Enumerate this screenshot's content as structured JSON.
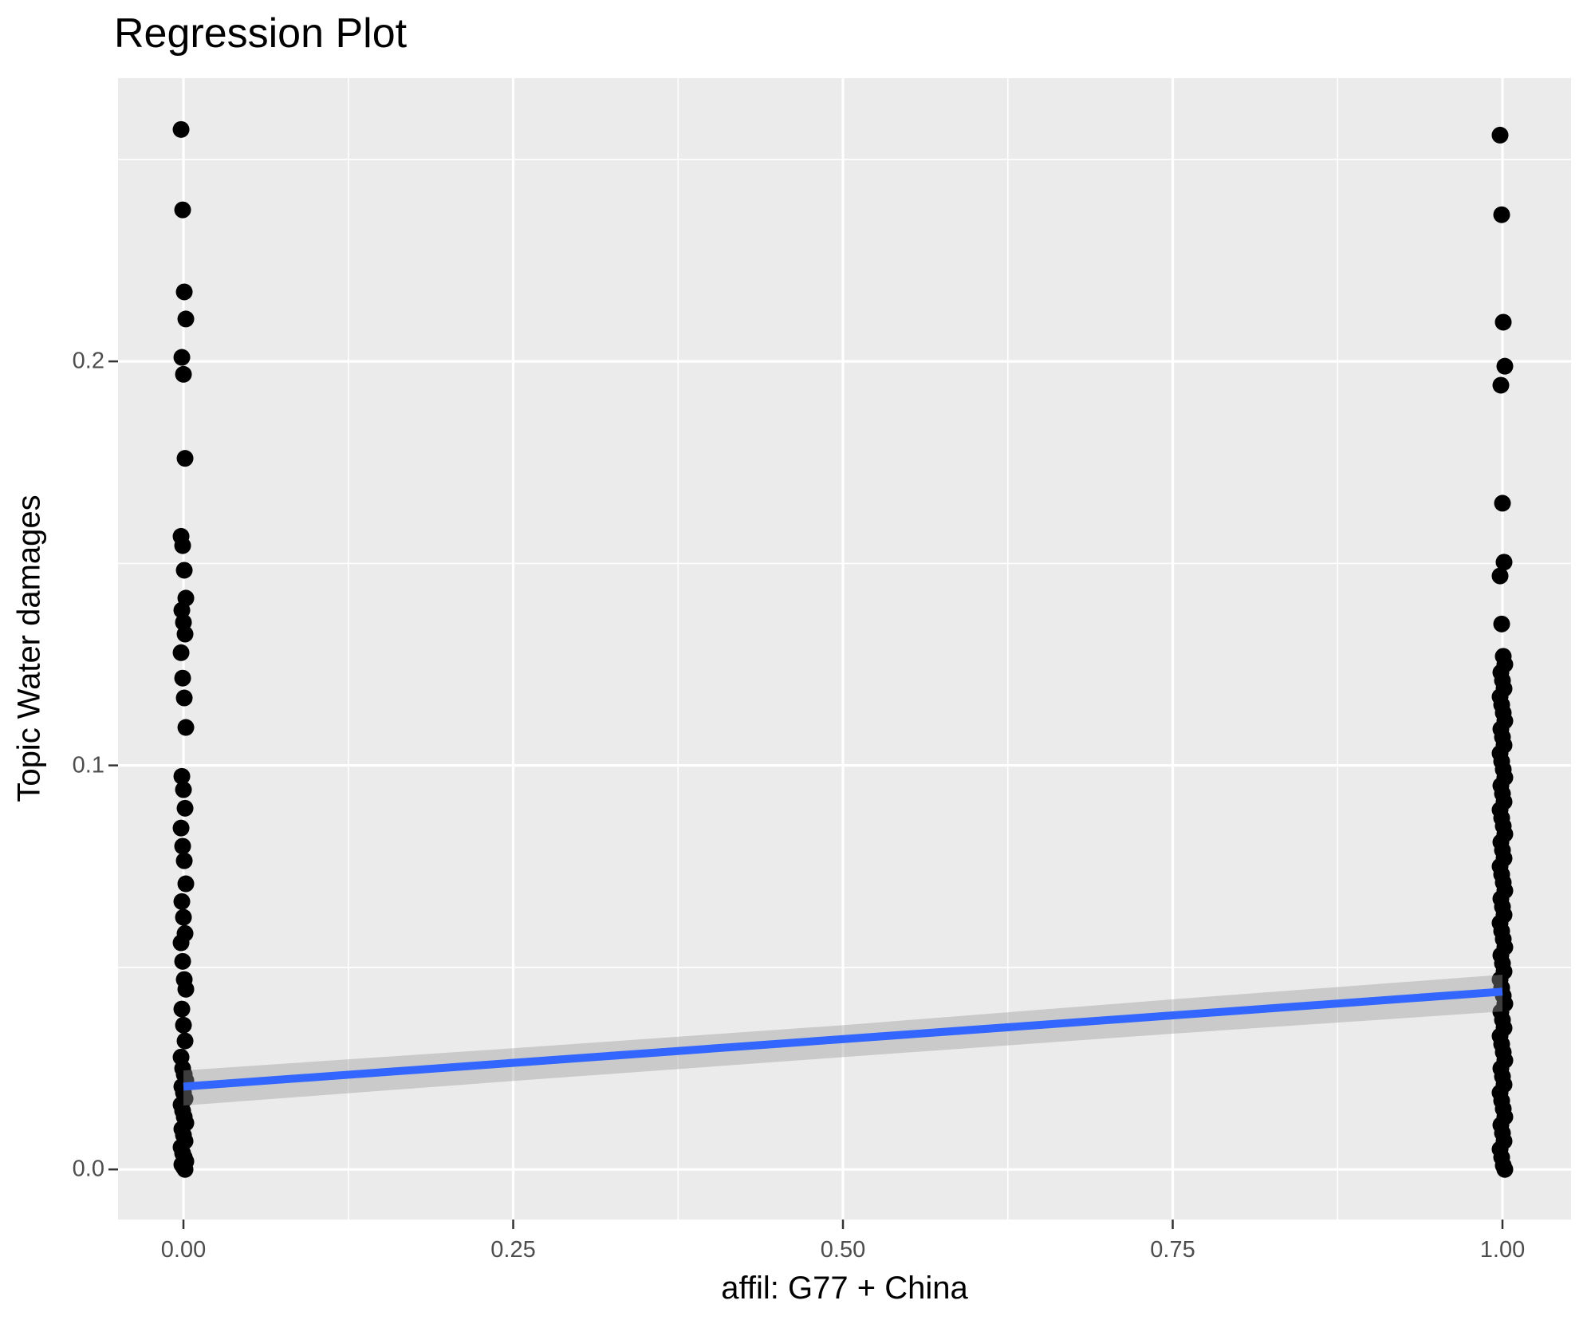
{
  "title": "Regression Plot",
  "colors": {
    "panel_background": "#EBEBEB",
    "gridline": "#FFFFFF",
    "tick_mark": "#333333",
    "tick_label": "#4D4D4D",
    "text": "#000000",
    "point": "#000000",
    "regression_line": "#3366FF",
    "confidence_band": "rgba(153,153,153,0.40)"
  },
  "chart_data": {
    "type": "scatter",
    "title": "Regression Plot",
    "xlabel": "affil: G77 + China",
    "ylabel": "Topic Water damages",
    "grid": true,
    "legend_position": "none",
    "xlim": [
      -0.0496,
      1.052
    ],
    "ylim": [
      -0.0124,
      0.2701
    ],
    "x_tick_labels": [
      "0.00",
      "0.25",
      "0.50",
      "0.75",
      "1.00"
    ],
    "x_tick_values": [
      0,
      0.25,
      0.5,
      0.75,
      1
    ],
    "y_tick_labels": [
      "0.0",
      "0.1",
      "0.2"
    ],
    "y_tick_values": [
      0,
      0.1,
      0.2
    ],
    "x_minor_values": [
      0.125,
      0.375,
      0.625,
      0.875
    ],
    "y_minor_values": [
      0.05,
      0.15,
      0.25
    ],
    "series": [
      {
        "name": "affil = 0",
        "x": 0,
        "y": [
          0.2574,
          0.2375,
          0.2172,
          0.2105,
          0.201,
          0.1968,
          0.176,
          0.1567,
          0.1544,
          0.1483,
          0.1414,
          0.1384,
          0.1354,
          0.1325,
          0.1279,
          0.1216,
          0.1167,
          0.1094,
          0.0973,
          0.094,
          0.0894,
          0.0845,
          0.08,
          0.0764,
          0.0707,
          0.0663,
          0.0624,
          0.0584,
          0.0561,
          0.0515,
          0.047,
          0.0446,
          0.0397,
          0.0357,
          0.0318,
          0.0278,
          0.025,
          0.0235,
          0.022,
          0.0205,
          0.019,
          0.0175,
          0.016,
          0.0145,
          0.013,
          0.0115,
          0.01,
          0.0085,
          0.007,
          0.0055,
          0.004,
          0.003,
          0.002,
          0.0012,
          0.0006,
          0.0
        ]
      },
      {
        "name": "affil = 1",
        "x": 1,
        "y": [
          0.256,
          0.2363,
          0.2097,
          0.1988,
          0.1941,
          0.1649,
          0.1503,
          0.1469,
          0.135,
          0.127,
          0.125,
          0.123,
          0.121,
          0.119,
          0.117,
          0.115,
          0.113,
          0.111,
          0.109,
          0.107,
          0.105,
          0.103,
          0.101,
          0.099,
          0.097,
          0.095,
          0.093,
          0.091,
          0.089,
          0.087,
          0.085,
          0.083,
          0.081,
          0.079,
          0.077,
          0.075,
          0.073,
          0.071,
          0.069,
          0.067,
          0.065,
          0.063,
          0.061,
          0.059,
          0.057,
          0.055,
          0.053,
          0.051,
          0.049,
          0.047,
          0.045,
          0.043,
          0.041,
          0.039,
          0.037,
          0.035,
          0.033,
          0.031,
          0.029,
          0.027,
          0.025,
          0.023,
          0.021,
          0.019,
          0.017,
          0.015,
          0.013,
          0.011,
          0.009,
          0.007,
          0.005,
          0.003,
          0.001,
          0.0
        ]
      }
    ],
    "regression_line": {
      "x": [
        0,
        1
      ],
      "y": [
        0.0205,
        0.044
      ]
    },
    "confidence_band": {
      "x": [
        0,
        0.25,
        0.5,
        0.75,
        1
      ],
      "ymax": [
        0.0245,
        0.03,
        0.0357,
        0.0421,
        0.0482
      ],
      "ymin": [
        0.0158,
        0.0219,
        0.0278,
        0.0336,
        0.0391
      ]
    }
  }
}
